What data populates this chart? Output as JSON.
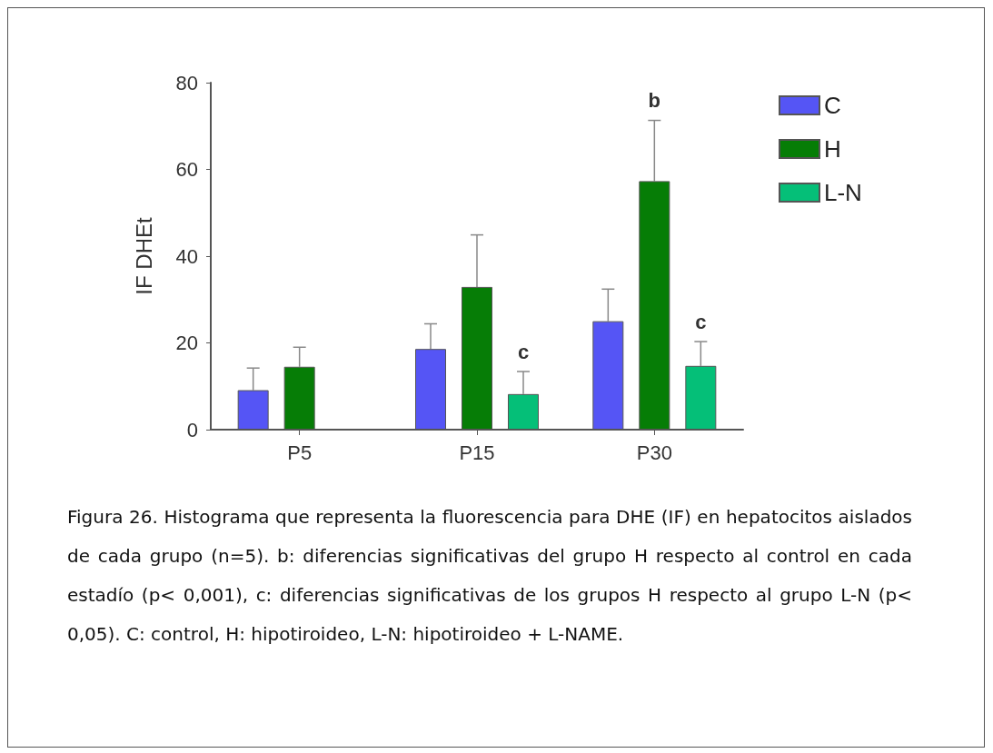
{
  "chart_data": {
    "type": "bar",
    "ylabel": "IF DHEt",
    "categories": [
      "P5",
      "P15",
      "P30"
    ],
    "series": [
      {
        "name": "C",
        "color": "#5555f5",
        "values": [
          9.1,
          18.6,
          25.0
        ],
        "errors": [
          [
            9.1,
            14.2
          ],
          [
            18.6,
            24.4
          ],
          [
            25.0,
            32.4
          ]
        ]
      },
      {
        "name": "H",
        "color": "#067d06",
        "values": [
          14.5,
          32.9,
          57.3
        ],
        "errors": [
          [
            14.5,
            19.0
          ],
          [
            32.9,
            44.9
          ],
          [
            57.3,
            71.3
          ]
        ]
      },
      {
        "name": "L-N",
        "color": "#05bf78",
        "values": [
          null,
          8.2,
          14.7
        ],
        "errors": [
          null,
          [
            8.2,
            13.4
          ],
          [
            14.7,
            20.3
          ]
        ]
      }
    ],
    "ylim": [
      0,
      80
    ],
    "yticks": [
      0,
      20,
      40,
      60,
      80
    ],
    "grid": false,
    "legend": "top right",
    "annotations": [
      {
        "text": "b",
        "y": 71.3
      },
      {
        "text": "c",
        "y": 13.4
      },
      {
        "text": "c",
        "y": 20.3
      },
      "Figura 26. Histograma que representa la fluorescencia para DHE (IF) en hepatocitos aislados de cada grupo (n=5). b: diferencias significativas del grupo H respecto al control en cada estadío (p< 0,001), c: diferencias significativas de los grupos H respecto al grupo L-N (p< 0,05). C: control, H: hipotiroideo, L-N: hipotiroideo + L-NAME."
    ]
  }
}
